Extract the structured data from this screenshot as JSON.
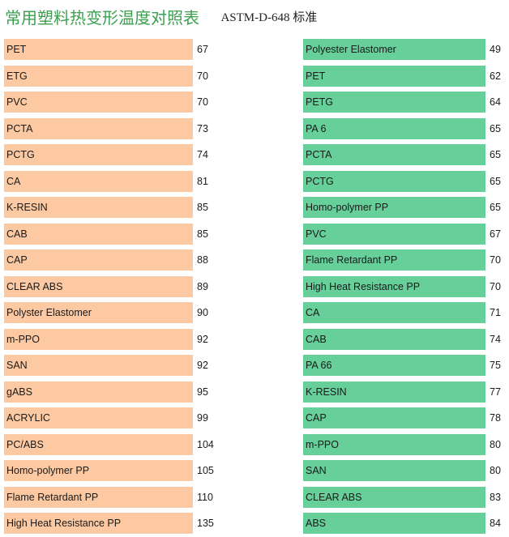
{
  "header": {
    "title_cn": "常用塑料热变形温度对照表",
    "title_std": "ASTM-D-648 标准"
  },
  "colors": {
    "left_bar": "#fcc9a2",
    "right_bar": "#66cf9a",
    "title": "#3aa050"
  },
  "left": [
    {
      "name": "PET",
      "value": "67"
    },
    {
      "name": "ETG",
      "value": "70"
    },
    {
      "name": "PVC",
      "value": "70"
    },
    {
      "name": "PCTA",
      "value": "73"
    },
    {
      "name": "PCTG",
      "value": "74"
    },
    {
      "name": "CA",
      "value": "81"
    },
    {
      "name": "K-RESIN",
      "value": "85"
    },
    {
      "name": "CAB",
      "value": "85"
    },
    {
      "name": "CAP",
      "value": "88"
    },
    {
      "name": "CLEAR ABS",
      "value": "89"
    },
    {
      "name": "Polyster Elastomer",
      "value": "90"
    },
    {
      "name": "m-PPO",
      "value": "92"
    },
    {
      "name": "SAN",
      "value": "92"
    },
    {
      "name": "gABS",
      "value": "95"
    },
    {
      "name": "ACRYLIC",
      "value": "99"
    },
    {
      "name": "PC/ABS",
      "value": "104"
    },
    {
      "name": "Homo-polymer PP",
      "value": "105"
    },
    {
      "name": "Flame Retardant PP",
      "value": "110"
    },
    {
      "name": "High Heat Resistance PP",
      "value": "135"
    }
  ],
  "right": [
    {
      "name": "Polyester Elastomer",
      "value": "49"
    },
    {
      "name": "PET",
      "value": "62"
    },
    {
      "name": "PETG",
      "value": "64"
    },
    {
      "name": "PA 6",
      "value": "65"
    },
    {
      "name": "PCTA",
      "value": "65"
    },
    {
      "name": "PCTG",
      "value": "65"
    },
    {
      "name": "Homo-polymer PP",
      "value": "65"
    },
    {
      "name": "PVC",
      "value": "67"
    },
    {
      "name": "Flame Retardant PP",
      "value": "70"
    },
    {
      "name": "High Heat Resistance PP",
      "value": "70"
    },
    {
      "name": "CA",
      "value": "71"
    },
    {
      "name": "CAB",
      "value": "74"
    },
    {
      "name": "PA 66",
      "value": "75"
    },
    {
      "name": "K-RESIN",
      "value": "77"
    },
    {
      "name": "CAP",
      "value": "78"
    },
    {
      "name": "m-PPO",
      "value": "80"
    },
    {
      "name": "SAN",
      "value": "80"
    },
    {
      "name": "CLEAR ABS",
      "value": "83"
    },
    {
      "name": "ABS",
      "value": "84"
    }
  ]
}
